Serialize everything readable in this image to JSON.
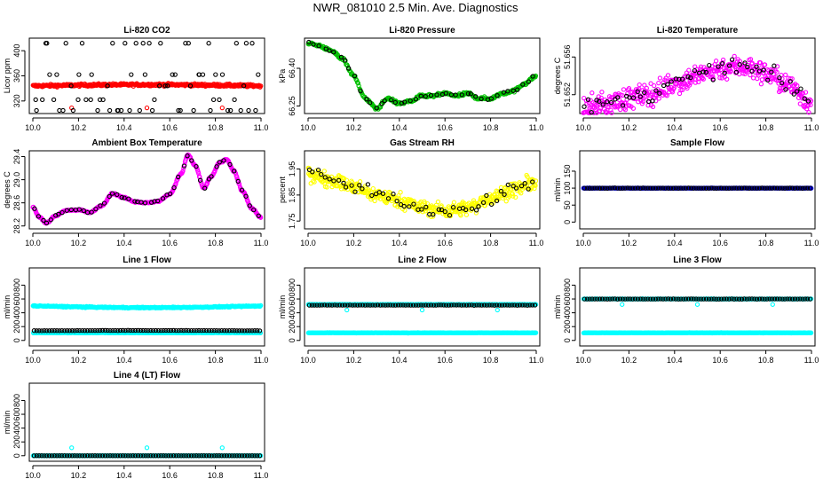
{
  "page_title": "NWR_081010  2.5 Min. Ave. Diagnostics",
  "colors": {
    "black": "#000000",
    "red": "#ff0000",
    "green": "#00c000",
    "magenta": "#ff00ff",
    "yellow": "#ffff00",
    "blue": "#0000ff",
    "cyan": "#00ffff"
  },
  "chart_data": [
    {
      "type": "scatter",
      "title": "Li-820 CO2",
      "ylabel": "Licor ppm",
      "xlim": [
        10.0,
        11.0
      ],
      "ylim": [
        300,
        420
      ],
      "xticks": [
        "10.0",
        "10.2",
        "10.4",
        "10.6",
        "10.8",
        "11.0"
      ],
      "yticks": [
        "320",
        "360",
        "400"
      ],
      "series": [
        {
          "color": "red",
          "pattern": "band",
          "center": 344,
          "amp": 2,
          "noise": 2,
          "n": 380
        },
        {
          "color": "red",
          "pattern": "spikes",
          "x": [
            10.17,
            10.5,
            10.83
          ],
          "y": [
            309,
            309,
            309
          ]
        },
        {
          "color": "black",
          "pattern": "levels",
          "levels": [
            305,
            322,
            344,
            362,
            412
          ],
          "n": 70
        }
      ]
    },
    {
      "type": "scatter",
      "title": "Li-820 Pressure",
      "ylabel": "kPa",
      "xlim": [
        10.0,
        11.0
      ],
      "ylim": [
        66.22,
        66.52
      ],
      "xticks": [
        "10.0",
        "10.2",
        "10.4",
        "10.6",
        "10.8",
        "11.0"
      ],
      "yticks": [
        "66.25",
        "66.40"
      ],
      "series": [
        {
          "color": "green",
          "pattern": "curve",
          "cx": [
            10.0,
            10.05,
            10.1,
            10.15,
            10.2,
            10.25,
            10.3,
            10.35,
            10.4,
            10.45,
            10.5,
            10.55,
            10.6,
            10.65,
            10.7,
            10.75,
            10.8,
            10.85,
            10.9,
            10.95,
            11.0
          ],
          "cy": [
            66.5,
            66.49,
            66.47,
            66.44,
            66.37,
            66.28,
            66.24,
            66.28,
            66.26,
            66.27,
            66.29,
            66.29,
            66.3,
            66.29,
            66.3,
            66.28,
            66.28,
            66.3,
            66.31,
            66.34,
            66.37
          ],
          "noise": 0.006,
          "n": 320
        },
        {
          "color": "black",
          "pattern": "curve",
          "cx": [
            10.0,
            10.05,
            10.1,
            10.15,
            10.2,
            10.25,
            10.3,
            10.35,
            10.4,
            10.45,
            10.5,
            10.55,
            10.6,
            10.65,
            10.7,
            10.75,
            10.8,
            10.85,
            10.9,
            10.95,
            11.0
          ],
          "cy": [
            66.5,
            66.49,
            66.47,
            66.44,
            66.37,
            66.28,
            66.24,
            66.28,
            66.26,
            66.27,
            66.29,
            66.29,
            66.3,
            66.29,
            66.3,
            66.28,
            66.28,
            66.3,
            66.31,
            66.34,
            66.37
          ],
          "noise": 0.004,
          "n": 45
        }
      ]
    },
    {
      "type": "scatter",
      "title": "Li-820 Temperature",
      "ylabel": "degrees C",
      "xlim": [
        10.0,
        11.0
      ],
      "ylim": [
        51.65,
        51.658
      ],
      "xticks": [
        "10.0",
        "10.2",
        "10.4",
        "10.6",
        "10.8",
        "11.0"
      ],
      "yticks": [
        "51.652",
        "51.656"
      ],
      "series": [
        {
          "color": "magenta",
          "pattern": "curve",
          "cx": [
            10.0,
            10.1,
            10.2,
            10.3,
            10.4,
            10.5,
            10.6,
            10.7,
            10.8,
            10.9,
            11.0
          ],
          "cy": [
            51.6506,
            51.651,
            51.6516,
            51.6521,
            51.6532,
            51.654,
            51.6548,
            51.655,
            51.6543,
            51.653,
            51.6512
          ],
          "noise": 0.0012,
          "n": 420
        },
        {
          "color": "black",
          "pattern": "curve",
          "cx": [
            10.0,
            10.1,
            10.2,
            10.3,
            10.4,
            10.5,
            10.6,
            10.7,
            10.8,
            10.9,
            11.0
          ],
          "cy": [
            51.6506,
            51.651,
            51.6516,
            51.6521,
            51.6532,
            51.654,
            51.6548,
            51.655,
            51.6543,
            51.653,
            51.6512
          ],
          "noise": 0.0008,
          "n": 60
        }
      ]
    },
    {
      "type": "scatter",
      "title": "Ambient Box Temperature",
      "ylabel": "degrees C",
      "xlim": [
        10.0,
        11.0
      ],
      "ylim": [
        28.15,
        29.5
      ],
      "xticks": [
        "10.0",
        "10.2",
        "10.4",
        "10.6",
        "10.8",
        "11.0"
      ],
      "yticks": [
        "28.2",
        "28.6",
        "29.0",
        "29.4"
      ],
      "series": [
        {
          "color": "magenta",
          "pattern": "curve",
          "cx": [
            10.0,
            10.03,
            10.06,
            10.1,
            10.15,
            10.2,
            10.25,
            10.3,
            10.35,
            10.4,
            10.45,
            10.5,
            10.55,
            10.6,
            10.65,
            10.68,
            10.71,
            10.75,
            10.78,
            10.82,
            10.85,
            10.88,
            10.92,
            10.96,
            11.0
          ],
          "cy": [
            28.52,
            28.35,
            28.25,
            28.38,
            28.47,
            28.48,
            28.43,
            28.55,
            28.76,
            28.69,
            28.62,
            28.6,
            28.63,
            28.75,
            29.1,
            29.43,
            29.25,
            28.85,
            29.05,
            29.3,
            29.35,
            29.15,
            28.8,
            28.5,
            28.35
          ],
          "noise": 0.012,
          "n": 420
        },
        {
          "color": "black",
          "pattern": "curve",
          "cx": [
            10.0,
            10.03,
            10.06,
            10.1,
            10.15,
            10.2,
            10.25,
            10.3,
            10.35,
            10.4,
            10.45,
            10.5,
            10.55,
            10.6,
            10.65,
            10.68,
            10.71,
            10.75,
            10.78,
            10.82,
            10.85,
            10.88,
            10.92,
            10.96,
            11.0
          ],
          "cy": [
            28.52,
            28.35,
            28.25,
            28.38,
            28.47,
            28.48,
            28.43,
            28.55,
            28.76,
            28.69,
            28.62,
            28.6,
            28.63,
            28.75,
            29.1,
            29.43,
            29.25,
            28.85,
            29.05,
            29.3,
            29.35,
            29.15,
            28.8,
            28.5,
            28.35
          ],
          "noise": 0.01,
          "n": 55
        }
      ]
    },
    {
      "type": "scatter",
      "title": "Gas Stream RH",
      "ylabel": "percent",
      "xlim": [
        10.0,
        11.0
      ],
      "ylim": [
        1.72,
        2.02
      ],
      "xticks": [
        "10.0",
        "10.2",
        "10.4",
        "10.6",
        "10.8",
        "11.0"
      ],
      "yticks": [
        "1.75",
        "1.85",
        "1.95"
      ],
      "series": [
        {
          "color": "yellow",
          "pattern": "curve",
          "cx": [
            10.0,
            10.1,
            10.2,
            10.3,
            10.4,
            10.5,
            10.6,
            10.7,
            10.8,
            10.9,
            11.0
          ],
          "cy": [
            1.93,
            1.91,
            1.88,
            1.85,
            1.83,
            1.8,
            1.79,
            1.8,
            1.84,
            1.87,
            1.9
          ],
          "noise": 0.028,
          "n": 440
        },
        {
          "color": "black",
          "pattern": "curve",
          "cx": [
            10.0,
            10.1,
            10.2,
            10.3,
            10.4,
            10.5,
            10.6,
            10.7,
            10.8,
            10.9,
            11.0
          ],
          "cy": [
            1.93,
            1.91,
            1.88,
            1.85,
            1.83,
            1.8,
            1.79,
            1.8,
            1.84,
            1.87,
            1.9
          ],
          "noise": 0.025,
          "n": 55
        }
      ]
    },
    {
      "type": "scatter",
      "title": "Sample Flow",
      "ylabel": "ml/min",
      "xlim": [
        10.0,
        11.0
      ],
      "ylim": [
        -20,
        210
      ],
      "xticks": [
        "10.0",
        "10.2",
        "10.4",
        "10.6",
        "10.8",
        "11.0"
      ],
      "yticks": [
        "0",
        "50",
        "100",
        "150"
      ],
      "series": [
        {
          "color": "blue",
          "pattern": "band",
          "center": 100,
          "amp": 0,
          "noise": 0.5,
          "n": 380
        },
        {
          "color": "black",
          "pattern": "band",
          "center": 100,
          "amp": 0,
          "noise": 0.5,
          "n": 90
        }
      ]
    },
    {
      "type": "scatter",
      "title": "Line 1 Flow",
      "ylabel": "ml/min",
      "xlim": [
        10.0,
        11.0
      ],
      "ylim": [
        -80,
        1050
      ],
      "xticks": [
        "10.0",
        "10.2",
        "10.4",
        "10.6",
        "10.8",
        "11.0"
      ],
      "yticks": [
        "0",
        "200",
        "400",
        "600",
        "800"
      ],
      "series": [
        {
          "color": "cyan",
          "pattern": "band",
          "center": 500,
          "amp": -25,
          "noise": 8,
          "n": 380
        },
        {
          "color": "cyan",
          "pattern": "band",
          "center": 110,
          "amp": 0,
          "noise": 3,
          "n": 200
        },
        {
          "color": "black",
          "pattern": "band",
          "center": 140,
          "amp": 5,
          "noise": 2,
          "n": 90
        }
      ]
    },
    {
      "type": "scatter",
      "title": "Line 2 Flow",
      "ylabel": "ml/min",
      "xlim": [
        10.0,
        11.0
      ],
      "ylim": [
        -80,
        1050
      ],
      "xticks": [
        "10.0",
        "10.2",
        "10.4",
        "10.6",
        "10.8",
        "11.0"
      ],
      "yticks": [
        "0",
        "200",
        "400",
        "600",
        "800"
      ],
      "series": [
        {
          "color": "cyan",
          "pattern": "band",
          "center": 520,
          "amp": 0,
          "noise": 3,
          "n": 300
        },
        {
          "color": "cyan",
          "pattern": "band",
          "center": 110,
          "amp": 0,
          "noise": 3,
          "n": 300
        },
        {
          "color": "cyan",
          "pattern": "spikes",
          "x": [
            10.17,
            10.5,
            10.83
          ],
          "y": [
            440,
            440,
            440
          ]
        },
        {
          "color": "black",
          "pattern": "band",
          "center": 510,
          "amp": 0,
          "noise": 2,
          "n": 90
        }
      ]
    },
    {
      "type": "scatter",
      "title": "Line 3 Flow",
      "ylabel": "ml/min",
      "xlim": [
        10.0,
        11.0
      ],
      "ylim": [
        -80,
        1050
      ],
      "xticks": [
        "10.0",
        "10.2",
        "10.4",
        "10.6",
        "10.8",
        "11.0"
      ],
      "yticks": [
        "0",
        "200",
        "400",
        "600",
        "800"
      ],
      "series": [
        {
          "color": "cyan",
          "pattern": "band",
          "center": 600,
          "amp": 0,
          "noise": 3,
          "n": 300
        },
        {
          "color": "cyan",
          "pattern": "band",
          "center": 110,
          "amp": 0,
          "noise": 3,
          "n": 300
        },
        {
          "color": "cyan",
          "pattern": "spikes",
          "x": [
            10.17,
            10.5,
            10.83
          ],
          "y": [
            520,
            520,
            520
          ]
        },
        {
          "color": "black",
          "pattern": "band",
          "center": 600,
          "amp": 0,
          "noise": 2,
          "n": 90
        }
      ]
    },
    {
      "type": "scatter",
      "title": "Line 4 (LT) Flow",
      "ylabel": "ml/min",
      "xlim": [
        10.0,
        11.0
      ],
      "ylim": [
        -80,
        1050
      ],
      "xticks": [
        "10.0",
        "10.2",
        "10.4",
        "10.6",
        "10.8",
        "11.0"
      ],
      "yticks": [
        "0",
        "200",
        "400",
        "600",
        "800"
      ],
      "series": [
        {
          "color": "cyan",
          "pattern": "band",
          "center": 0,
          "amp": 0,
          "noise": 2,
          "n": 300
        },
        {
          "color": "cyan",
          "pattern": "spikes",
          "x": [
            10.17,
            10.5,
            10.83
          ],
          "y": [
            115,
            115,
            115
          ]
        },
        {
          "color": "black",
          "pattern": "band",
          "center": 0,
          "amp": 0,
          "noise": 1,
          "n": 90
        }
      ]
    }
  ]
}
